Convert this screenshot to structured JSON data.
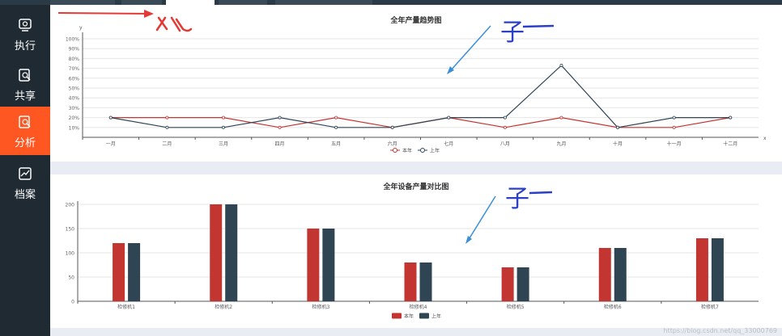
{
  "sidebar": {
    "items": [
      {
        "label": "执行",
        "icon": "monitor-icon",
        "active": false
      },
      {
        "label": "共享",
        "icon": "share-search-icon",
        "active": false
      },
      {
        "label": "分析",
        "icon": "analysis-icon",
        "active": true
      },
      {
        "label": "档案",
        "icon": "archive-icon",
        "active": false
      }
    ]
  },
  "colors": {
    "sidebar_bg": "#1f2a33",
    "active_accent": "#ff5722",
    "series_current": "#c23531",
    "series_previous": "#2f4554"
  },
  "annotations": {
    "top_handwriting": "子",
    "bottom_handwriting": "子"
  },
  "watermark": "https://blog.csdn.net/qq_33000769",
  "chart_data": [
    {
      "type": "line",
      "title": "全年产量趋势图",
      "ylabel": "y",
      "xlabel": "x",
      "categories": [
        "一月",
        "二月",
        "三月",
        "四月",
        "五月",
        "六月",
        "七月",
        "八月",
        "九月",
        "十月",
        "十一月",
        "十二月"
      ],
      "yticks": [
        "10%",
        "20%",
        "30%",
        "40%",
        "50%",
        "60%",
        "70%",
        "80%",
        "90%",
        "100%"
      ],
      "ylim": [
        0,
        100
      ],
      "grid": true,
      "legend": "bottom-center",
      "series": [
        {
          "name": "本年",
          "values": [
            20,
            20,
            20,
            10,
            20,
            10,
            20,
            10,
            20,
            10,
            10,
            20
          ]
        },
        {
          "name": "上年",
          "values": [
            20,
            10,
            10,
            20,
            10,
            10,
            20,
            20,
            73,
            10,
            20,
            20
          ]
        }
      ]
    },
    {
      "type": "bar",
      "title": "全年设备产量对比图",
      "categories": [
        "检修机1",
        "检修机2",
        "检修机3",
        "检修机4",
        "检修机5",
        "检修机6",
        "检修机7"
      ],
      "yticks": [
        "0",
        "50",
        "100",
        "150",
        "200"
      ],
      "ylim": [
        0,
        200
      ],
      "grid": true,
      "legend": "bottom-center",
      "series": [
        {
          "name": "本年",
          "values": [
            120,
            200,
            150,
            80,
            70,
            110,
            130
          ]
        },
        {
          "name": "上年",
          "values": [
            120,
            200,
            150,
            80,
            70,
            110,
            130
          ]
        }
      ]
    }
  ]
}
